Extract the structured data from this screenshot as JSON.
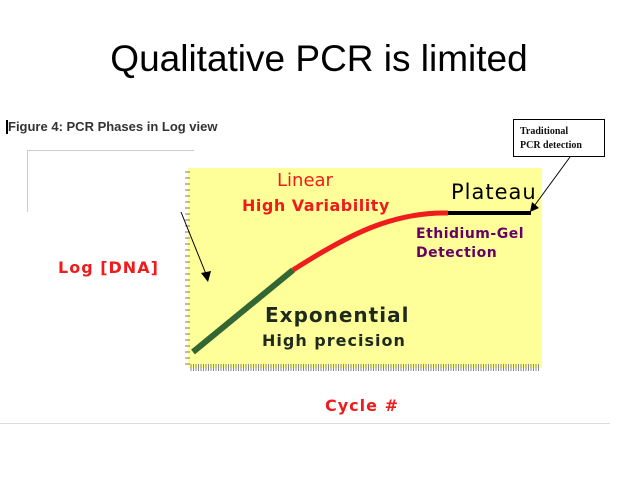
{
  "slide": {
    "title": "Qualitative PCR is limited"
  },
  "figure": {
    "caption": "Figure 4: PCR Phases in Log view",
    "y_axis_label": "Log [DNA]",
    "x_axis_label": "Cycle  #",
    "phases": {
      "linear_title": "Linear",
      "linear_subtitle": "High Variability",
      "plateau_title": "Plateau",
      "exponential_title": "Exponential",
      "exponential_subtitle": "High precision"
    },
    "detection": {
      "gel_line1": "Ethidium-Gel",
      "gel_line2": "Detection",
      "traditional_line1": "Traditional",
      "traditional_line2": "PCR detection"
    },
    "colors": {
      "plot_background": "#ffff99",
      "exponential_segment": "#336633",
      "linear_segment": "#ee1c1c",
      "plateau_segment": "#000000",
      "label_red": "#ee1c1c",
      "gel_label": "#660066"
    }
  }
}
